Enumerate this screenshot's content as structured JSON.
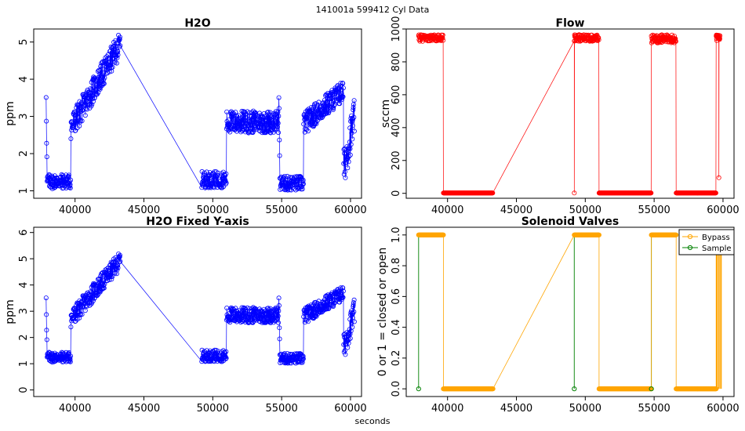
{
  "figure": {
    "supertitle": "141001a    599412   Cyl Data",
    "xlabel": "seconds"
  },
  "chart_data": [
    {
      "id": "h2o",
      "type": "scatter",
      "title": "H2O",
      "ylabel": "ppm",
      "xlim": [
        37000,
        60800
      ],
      "ylim": [
        0.8,
        5.35
      ],
      "xticks": [
        "40000",
        "45000",
        "50000",
        "55000",
        "60000"
      ],
      "yticks": [
        "1",
        "2",
        "3",
        "4",
        "5"
      ],
      "ytick_values": [
        1,
        2,
        3,
        4,
        5
      ],
      "xtick_values": [
        40000,
        45000,
        50000,
        55000,
        60000
      ],
      "color": "#0000ff",
      "series": [
        {
          "name": "H2O",
          "segments": [
            {
              "x0": 37900,
              "x1": 39700,
              "base": 1.25,
              "spread": 0.2,
              "spikeStart": 3.6
            },
            {
              "x0": 39700,
              "x1": 43300,
              "base0": 2.7,
              "base1": 4.95,
              "spread": 0.35
            },
            {
              "x0": 49200,
              "x1": 51000,
              "base": 1.3,
              "spread": 0.22
            },
            {
              "x0": 51000,
              "x1": 54800,
              "base": 2.85,
              "spread": 0.3
            },
            {
              "x0": 54800,
              "x1": 56600,
              "base": 1.2,
              "spread": 0.2,
              "spikeStart": 3.7
            },
            {
              "x0": 56600,
              "x1": 59500,
              "base0": 2.8,
              "base1": 3.7,
              "spread": 0.3
            },
            {
              "x0": 59500,
              "x1": 60300,
              "base0": 1.6,
              "base1": 3.0,
              "spread": 0.5
            }
          ]
        }
      ]
    },
    {
      "id": "flow",
      "type": "scatter",
      "title": "Flow",
      "ylabel": "sccm",
      "xlim": [
        37000,
        60800
      ],
      "ylim": [
        -30,
        1000
      ],
      "xticks": [
        "40000",
        "45000",
        "50000",
        "55000",
        "60000"
      ],
      "yticks": [
        "0",
        "200",
        "400",
        "600",
        "800",
        "1000"
      ],
      "ytick_values": [
        0,
        200,
        400,
        600,
        800,
        1000
      ],
      "xtick_values": [
        40000,
        45000,
        50000,
        55000,
        60000
      ],
      "color": "#ff0000",
      "series": [
        {
          "name": "Flow",
          "segments": [
            {
              "x0": 37900,
              "x1": 39700,
              "base": 945,
              "spread": 20
            },
            {
              "x0": 39700,
              "x1": 43300,
              "base": 2,
              "spread": 0
            },
            {
              "x0": 49200,
              "x1": 51000,
              "base": 945,
              "spread": 20
            },
            {
              "x0": 51000,
              "x1": 54800,
              "base": 2,
              "spread": 0
            },
            {
              "x0": 54800,
              "x1": 56600,
              "base": 940,
              "spread": 25
            },
            {
              "x0": 56600,
              "x1": 59500,
              "base": 2,
              "spread": 0
            },
            {
              "x0": 59500,
              "x1": 59800,
              "base": 950,
              "spread": 15
            }
          ],
          "extra_points": [
            [
              49200,
              2
            ],
            [
              59700,
              95
            ],
            [
              59550,
              930
            ]
          ]
        }
      ]
    },
    {
      "id": "h2o-fixed",
      "type": "scatter",
      "title": "H2O Fixed Y-axis",
      "ylabel": "ppm",
      "xlim": [
        37000,
        60800
      ],
      "ylim": [
        -0.25,
        6.2
      ],
      "xticks": [
        "40000",
        "45000",
        "50000",
        "55000",
        "60000"
      ],
      "yticks": [
        "0",
        "1",
        "2",
        "3",
        "4",
        "5",
        "6"
      ],
      "ytick_values": [
        0,
        1,
        2,
        3,
        4,
        5,
        6
      ],
      "xtick_values": [
        40000,
        45000,
        50000,
        55000,
        60000
      ],
      "color": "#0000ff",
      "series_ref": "h2o"
    },
    {
      "id": "valves",
      "type": "scatter",
      "title": "Solenoid Valves",
      "ylabel": "0 or 1 = closed or open",
      "xlim": [
        37000,
        60800
      ],
      "ylim": [
        -0.05,
        1.05
      ],
      "xticks": [
        "40000",
        "45000",
        "50000",
        "55000",
        "60000"
      ],
      "yticks": [
        "0.0",
        "0.2",
        "0.4",
        "0.6",
        "0.8",
        "1.0"
      ],
      "ytick_values": [
        0,
        0.2,
        0.4,
        0.6,
        0.8,
        1.0
      ],
      "xtick_values": [
        40000,
        45000,
        50000,
        55000,
        60000
      ],
      "legend": {
        "position": "top-right",
        "entries": [
          "Bypass",
          "Sample"
        ]
      },
      "series": [
        {
          "name": "Bypass",
          "color": "#ffa500",
          "intervals": [
            [
              37900,
              39700,
              1
            ],
            [
              39700,
              43300,
              0
            ],
            [
              49200,
              51000,
              1
            ],
            [
              51000,
              54800,
              0
            ],
            [
              54800,
              56600,
              1
            ],
            [
              56600,
              59500,
              0
            ],
            [
              59500,
              60000,
              1
            ]
          ]
        },
        {
          "name": "Sample",
          "color": "#008000",
          "points": [
            [
              37900,
              0
            ],
            [
              49200,
              0
            ],
            [
              54800,
              0
            ]
          ]
        }
      ]
    }
  ]
}
